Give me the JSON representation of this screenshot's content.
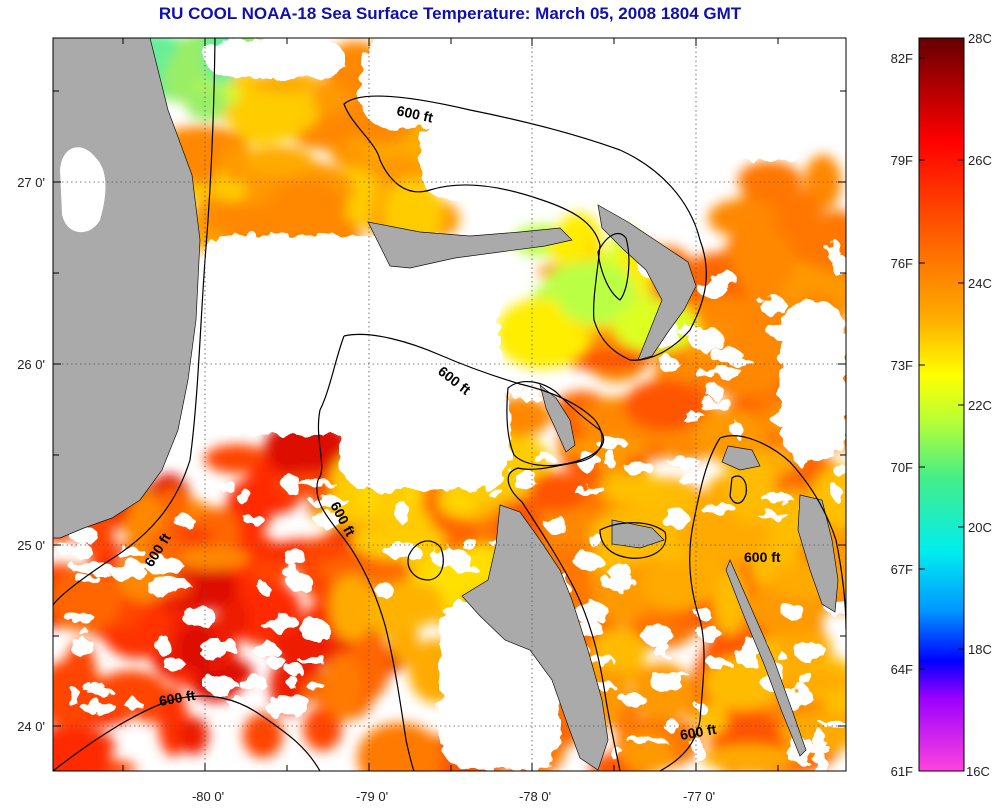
{
  "title": "RU COOL  NOAA-18  Sea Surface Temperature:  March 05, 2008 1804 GMT",
  "map": {
    "lon_ticks": [
      "-80 0'",
      "-79 0'",
      "-78 0'",
      "-77 0'"
    ],
    "lat_ticks": [
      "27 0'",
      "26 0'",
      "25 0'",
      "24 0'"
    ],
    "contour_labels": [
      "600 ft",
      "600 ft",
      "600 ft",
      "600 ft",
      "600 ft",
      "600 ft",
      "600 ft"
    ]
  },
  "colorbar": {
    "fahrenheit_labels": [
      "82F",
      "79F",
      "76F",
      "73F",
      "70F",
      "67F",
      "64F",
      "61F"
    ],
    "celsius_labels": [
      "28C",
      "26C",
      "24C",
      "22C",
      "20C",
      "18C",
      "16C"
    ]
  }
}
